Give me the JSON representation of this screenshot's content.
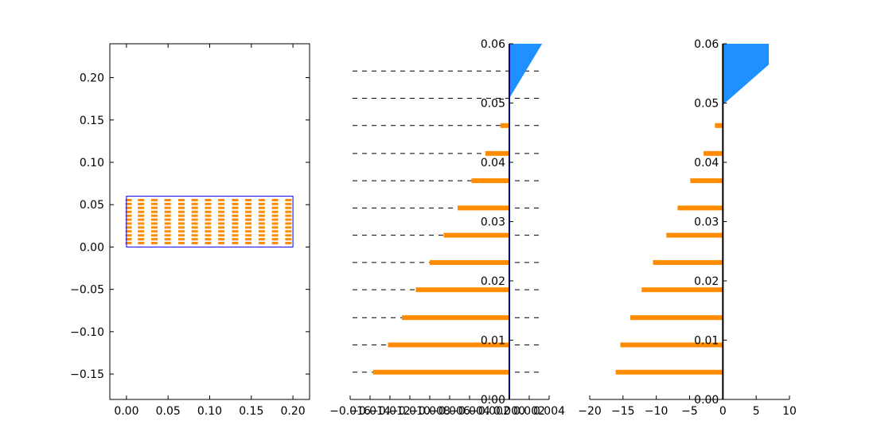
{
  "chart_data": [
    {
      "type": "scatter",
      "title": "",
      "xlabel": "",
      "ylabel": "",
      "xlim": [
        -0.02,
        0.22
      ],
      "ylim": [
        -0.18,
        0.24
      ],
      "x_ticks": [
        "0.00",
        "0.05",
        "0.10",
        "0.15",
        "0.20"
      ],
      "x_tick_values": [
        0.0,
        0.05,
        0.1,
        0.15,
        0.2
      ],
      "y_ticks": [
        "−0.15",
        "−0.10",
        "−0.05",
        "0.00",
        "0.05",
        "0.10",
        "0.15",
        "0.20"
      ],
      "y_tick_values": [
        -0.15,
        -0.1,
        -0.05,
        0.0,
        0.05,
        0.1,
        0.15,
        0.2
      ],
      "grid": false,
      "box": {
        "x0": 0.0,
        "x1": 0.2,
        "y0": 0.0,
        "y1": 0.06
      },
      "dash_columns_x": [
        0.0025,
        0.0175,
        0.0335,
        0.0495,
        0.066,
        0.082,
        0.098,
        0.114,
        0.1305,
        0.1465,
        0.1625,
        0.1785,
        0.1945
      ],
      "dash_rows_y": [
        0.0046,
        0.0092,
        0.0138,
        0.0185,
        0.0231,
        0.0277,
        0.0323,
        0.0369,
        0.0415,
        0.0462,
        0.0508,
        0.0554
      ],
      "colors": {
        "marks": "#ff8c00",
        "box": "#0000ff"
      }
    },
    {
      "type": "bar",
      "orientation": "horizontal",
      "title": "",
      "xlabel": "",
      "ylabel": "",
      "xlim": [
        -0.016,
        0.004
      ],
      "ylim": [
        0.0,
        0.06
      ],
      "x_ticks": [
        "−0.016",
        "−0.014",
        "−0.012",
        "−0.010",
        "−0.008",
        "−0.006",
        "−0.004",
        "−0.002",
        "0.000",
        "0.002",
        "0.004"
      ],
      "x_tick_values": [
        -0.016,
        -0.014,
        -0.012,
        -0.01,
        -0.008,
        -0.006,
        -0.004,
        -0.002,
        0.0,
        0.002,
        0.004
      ],
      "y_ticks": [
        "0.00",
        "0.01",
        "0.02",
        "0.03",
        "0.04",
        "0.05",
        "0.06"
      ],
      "y_tick_values": [
        0.0,
        0.01,
        0.02,
        0.03,
        0.04,
        0.05,
        0.06
      ],
      "y": [
        0.0046,
        0.0092,
        0.0138,
        0.0185,
        0.0231,
        0.0277,
        0.0323,
        0.0369,
        0.0415,
        0.0462
      ],
      "values": [
        -0.0137,
        -0.0122,
        -0.0108,
        -0.0094,
        -0.008,
        -0.0066,
        -0.0052,
        -0.0038,
        -0.0024,
        -0.0009
      ],
      "reference_lines_y": [
        0.0046,
        0.0092,
        0.0138,
        0.0185,
        0.0231,
        0.0277,
        0.0323,
        0.0369,
        0.0415,
        0.0462,
        0.0508,
        0.0554
      ],
      "fill_region": [
        [
          0.0,
          0.06
        ],
        [
          0.0033,
          0.06
        ],
        [
          0.0,
          0.0508
        ]
      ],
      "colors": {
        "bars": "#ff8c00",
        "fill": "#1e90ff",
        "axis": "#00008b",
        "reference": "#000000"
      }
    },
    {
      "type": "bar",
      "orientation": "horizontal",
      "title": "",
      "xlabel": "",
      "ylabel": "",
      "xlim": [
        -20,
        10
      ],
      "ylim": [
        0.0,
        0.06
      ],
      "x_ticks": [
        "−20",
        "−15",
        "−10",
        "−5",
        "0",
        "5",
        "10"
      ],
      "x_tick_values": [
        -20,
        -15,
        -10,
        -5,
        0,
        5,
        10
      ],
      "y_ticks": [
        "0.00",
        "0.01",
        "0.02",
        "0.03",
        "0.04",
        "0.05",
        "0.06"
      ],
      "y_tick_values": [
        0.0,
        0.01,
        0.02,
        0.03,
        0.04,
        0.05,
        0.06
      ],
      "y": [
        0.0046,
        0.0092,
        0.0138,
        0.0185,
        0.0231,
        0.0277,
        0.0323,
        0.0369,
        0.0415,
        0.0462
      ],
      "values": [
        -16.1,
        -15.4,
        -13.9,
        -12.2,
        -10.5,
        -8.5,
        -6.8,
        -4.9,
        -2.9,
        -1.2
      ],
      "fill_region": [
        [
          0.0,
          0.06
        ],
        [
          6.9,
          0.06
        ],
        [
          6.9,
          0.0565
        ],
        [
          0.0,
          0.0497
        ]
      ],
      "colors": {
        "bars": "#ff8c00",
        "fill": "#1e90ff",
        "axis": "#000000"
      }
    }
  ]
}
